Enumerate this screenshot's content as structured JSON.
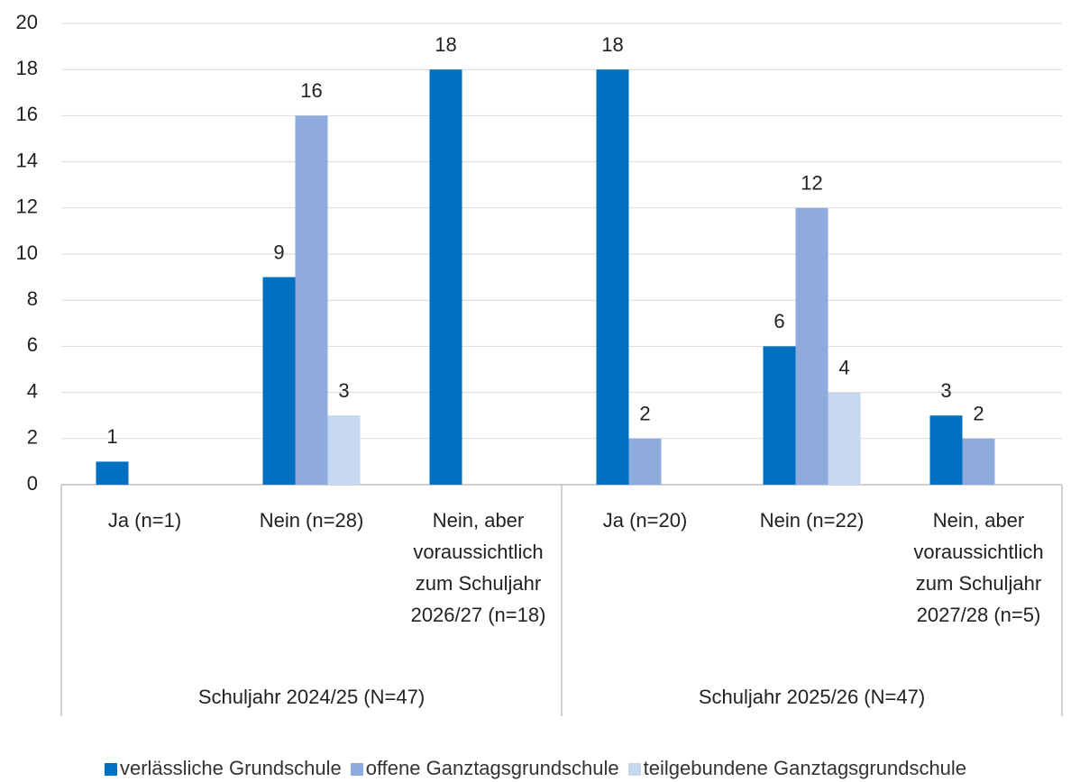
{
  "chart_data": {
    "type": "bar",
    "categories": [
      "Ja (n=1)",
      "Nein (n=28)",
      "Nein, aber voraussichtlich zum Schuljahr 2026/27 (n=18)",
      "Ja (n=20)",
      "Nein (n=22)",
      "Nein, aber voraussichtlich zum Schuljahr 2027/28 (n=5)"
    ],
    "groups": [
      {
        "label": "Schuljahr 2024/25 (N=47)",
        "size": 3
      },
      {
        "label": "Schuljahr 2025/26 (N=47)",
        "size": 3
      }
    ],
    "series": [
      {
        "name": "verlässliche Grundschule",
        "color": "#0070c0",
        "values": [
          1,
          9,
          18,
          18,
          6,
          3
        ]
      },
      {
        "name": "offene Ganztagsgrundschule",
        "color": "#8faadc",
        "values": [
          null,
          16,
          null,
          2,
          12,
          2
        ]
      },
      {
        "name": "teilgebundene Ganztagsgrundschule",
        "color": "#c5d8f0",
        "values": [
          null,
          3,
          null,
          null,
          4,
          null
        ]
      }
    ],
    "ylim": [
      0,
      20
    ],
    "yticks": [
      0,
      2,
      4,
      6,
      8,
      10,
      12,
      14,
      16,
      18,
      20
    ],
    "grid": true,
    "legend": "bottom"
  }
}
